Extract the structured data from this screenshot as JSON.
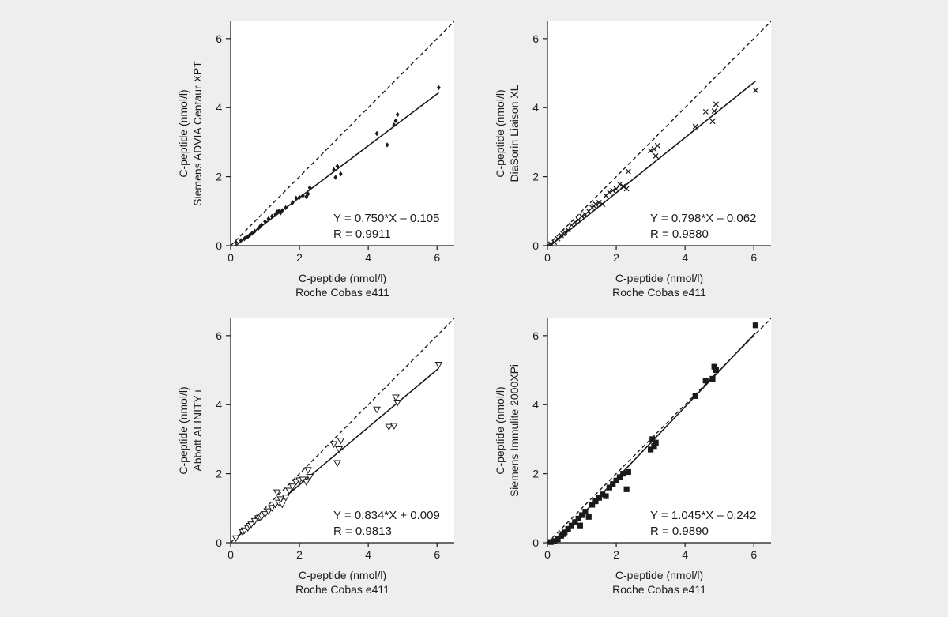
{
  "chart_data": [
    {
      "type": "scatter",
      "xlabel": [
        "C-peptide (nmol/l)",
        "Roche Cobas e411"
      ],
      "ylabel": [
        "C-peptide (nmol/l)",
        "Siemens ADVIA Centaur XPT"
      ],
      "xlim": [
        0,
        6.5
      ],
      "ylim": [
        0,
        6.5
      ],
      "xticks": [
        0,
        2,
        4,
        6
      ],
      "yticks": [
        0,
        2,
        4,
        6
      ],
      "marker": "diamond",
      "identity_line": true,
      "fit": {
        "slope": 0.75,
        "intercept": -0.105,
        "x_range": [
          0.14,
          6.05
        ]
      },
      "annotations": [
        "Y = 0.750*X – 0.105",
        "R = 0.9911"
      ],
      "points": [
        [
          0.15,
          0.1
        ],
        [
          0.3,
          0.15
        ],
        [
          0.4,
          0.2
        ],
        [
          0.45,
          0.24
        ],
        [
          0.5,
          0.26
        ],
        [
          0.55,
          0.3
        ],
        [
          0.62,
          0.36
        ],
        [
          0.7,
          0.42
        ],
        [
          0.8,
          0.5
        ],
        [
          0.85,
          0.55
        ],
        [
          0.9,
          0.6
        ],
        [
          1.0,
          0.7
        ],
        [
          1.1,
          0.78
        ],
        [
          1.2,
          0.85
        ],
        [
          1.3,
          0.9
        ],
        [
          1.35,
          0.98
        ],
        [
          1.4,
          1.0
        ],
        [
          1.45,
          0.95
        ],
        [
          1.5,
          1.02
        ],
        [
          1.6,
          1.1
        ],
        [
          1.8,
          1.25
        ],
        [
          1.9,
          1.38
        ],
        [
          2.0,
          1.4
        ],
        [
          2.1,
          1.45
        ],
        [
          2.2,
          1.42
        ],
        [
          2.25,
          1.5
        ],
        [
          2.3,
          1.68
        ],
        [
          3.0,
          2.2
        ],
        [
          3.05,
          1.98
        ],
        [
          3.1,
          2.3
        ],
        [
          3.2,
          2.08
        ],
        [
          4.25,
          3.25
        ],
        [
          4.55,
          2.92
        ],
        [
          4.75,
          3.5
        ],
        [
          4.8,
          3.62
        ],
        [
          4.85,
          3.8
        ],
        [
          6.05,
          4.58
        ]
      ]
    },
    {
      "type": "scatter",
      "xlabel": [
        "C-peptide (nmol/l)",
        "Roche Cobas e411"
      ],
      "ylabel": [
        "C-peptide (nmol/l)",
        "DiaSorin Liaison XL"
      ],
      "xlim": [
        0,
        6.5
      ],
      "ylim": [
        0,
        6.5
      ],
      "xticks": [
        0,
        2,
        4,
        6
      ],
      "yticks": [
        0,
        2,
        4,
        6
      ],
      "marker": "cross",
      "identity_line": true,
      "fit": {
        "slope": 0.798,
        "intercept": -0.062,
        "x_range": [
          0.08,
          6.05
        ]
      },
      "annotations": [
        "Y = 0.798*X – 0.062",
        "R = 0.9880"
      ],
      "points": [
        [
          0.1,
          0.05
        ],
        [
          0.2,
          0.1
        ],
        [
          0.3,
          0.2
        ],
        [
          0.4,
          0.3
        ],
        [
          0.45,
          0.35
        ],
        [
          0.5,
          0.4
        ],
        [
          0.6,
          0.45
        ],
        [
          0.7,
          0.6
        ],
        [
          0.8,
          0.68
        ],
        [
          0.9,
          0.75
        ],
        [
          1.0,
          0.85
        ],
        [
          1.1,
          0.9
        ],
        [
          1.2,
          1.0
        ],
        [
          1.3,
          1.1
        ],
        [
          1.35,
          1.15
        ],
        [
          1.4,
          1.2
        ],
        [
          1.5,
          1.25
        ],
        [
          1.6,
          1.2
        ],
        [
          1.7,
          1.45
        ],
        [
          1.8,
          1.55
        ],
        [
          1.9,
          1.6
        ],
        [
          2.0,
          1.65
        ],
        [
          2.1,
          1.78
        ],
        [
          2.2,
          1.72
        ],
        [
          2.3,
          1.65
        ],
        [
          2.35,
          2.15
        ],
        [
          3.0,
          2.75
        ],
        [
          3.1,
          2.8
        ],
        [
          3.15,
          2.6
        ],
        [
          3.2,
          2.9
        ],
        [
          4.3,
          3.45
        ],
        [
          4.6,
          3.88
        ],
        [
          4.8,
          3.6
        ],
        [
          4.85,
          3.9
        ],
        [
          4.9,
          4.1
        ],
        [
          6.05,
          4.5
        ]
      ]
    },
    {
      "type": "scatter",
      "xlabel": [
        "C-peptide (nmol/l)",
        "Roche Cobas e411"
      ],
      "ylabel": [
        "C-peptide (nmol/l)",
        "Abbott ALINITY i"
      ],
      "xlim": [
        0,
        6.5
      ],
      "ylim": [
        0,
        6.5
      ],
      "xticks": [
        0,
        2,
        4,
        6
      ],
      "yticks": [
        0,
        2,
        4,
        6
      ],
      "marker": "triangle-down",
      "identity_line": true,
      "fit": {
        "slope": 0.834,
        "intercept": 0.009,
        "x_range": [
          0.14,
          6.05
        ]
      },
      "annotations": [
        "Y = 0.834*X + 0.009",
        "R = 0.9813"
      ],
      "points": [
        [
          0.15,
          0.12
        ],
        [
          0.35,
          0.3
        ],
        [
          0.4,
          0.35
        ],
        [
          0.5,
          0.42
        ],
        [
          0.55,
          0.48
        ],
        [
          0.6,
          0.52
        ],
        [
          0.7,
          0.62
        ],
        [
          0.8,
          0.7
        ],
        [
          0.85,
          0.72
        ],
        [
          0.9,
          0.75
        ],
        [
          1.0,
          0.82
        ],
        [
          1.1,
          0.9
        ],
        [
          1.2,
          1.0
        ],
        [
          1.3,
          1.1
        ],
        [
          1.35,
          1.45
        ],
        [
          1.4,
          1.15
        ],
        [
          1.45,
          1.25
        ],
        [
          1.5,
          1.1
        ],
        [
          1.6,
          1.3
        ],
        [
          1.7,
          1.5
        ],
        [
          1.8,
          1.62
        ],
        [
          1.9,
          1.75
        ],
        [
          2.0,
          1.8
        ],
        [
          2.1,
          1.82
        ],
        [
          2.2,
          1.75
        ],
        [
          2.25,
          2.1
        ],
        [
          2.3,
          1.9
        ],
        [
          3.0,
          2.85
        ],
        [
          3.1,
          2.3
        ],
        [
          3.15,
          2.7
        ],
        [
          3.2,
          2.95
        ],
        [
          4.25,
          3.85
        ],
        [
          4.6,
          3.35
        ],
        [
          4.75,
          3.38
        ],
        [
          4.8,
          4.2
        ],
        [
          4.85,
          4.05
        ],
        [
          6.05,
          5.15
        ]
      ]
    },
    {
      "type": "scatter",
      "xlabel": [
        "C-peptide (nmol/l)",
        "Roche Cobas e411"
      ],
      "ylabel": [
        "C-peptide (nmol/l)",
        "Siemens Immulite 2000XPi"
      ],
      "xlim": [
        0,
        6.5
      ],
      "ylim": [
        0,
        6.5
      ],
      "xticks": [
        0,
        2,
        4,
        6
      ],
      "yticks": [
        0,
        2,
        4,
        6
      ],
      "marker": "square",
      "identity_line": true,
      "fit": {
        "slope": 1.045,
        "intercept": -0.242,
        "x_range": [
          0.23,
          6.05
        ]
      },
      "annotations": [
        "Y = 1.045*X – 0.242",
        "R = 0.9890"
      ],
      "points": [
        [
          0.1,
          0.02
        ],
        [
          0.2,
          0.05
        ],
        [
          0.3,
          0.1
        ],
        [
          0.4,
          0.2
        ],
        [
          0.45,
          0.25
        ],
        [
          0.5,
          0.3
        ],
        [
          0.6,
          0.4
        ],
        [
          0.7,
          0.5
        ],
        [
          0.8,
          0.6
        ],
        [
          0.9,
          0.7
        ],
        [
          0.95,
          0.5
        ],
        [
          1.0,
          0.8
        ],
        [
          1.1,
          0.9
        ],
        [
          1.2,
          0.75
        ],
        [
          1.3,
          1.1
        ],
        [
          1.4,
          1.2
        ],
        [
          1.5,
          1.3
        ],
        [
          1.6,
          1.4
        ],
        [
          1.7,
          1.35
        ],
        [
          1.8,
          1.6
        ],
        [
          1.9,
          1.7
        ],
        [
          2.0,
          1.8
        ],
        [
          2.1,
          1.9
        ],
        [
          2.2,
          2.0
        ],
        [
          2.3,
          1.55
        ],
        [
          2.35,
          2.05
        ],
        [
          3.0,
          2.7
        ],
        [
          3.05,
          3.0
        ],
        [
          3.1,
          2.8
        ],
        [
          3.15,
          2.9
        ],
        [
          4.3,
          4.25
        ],
        [
          4.6,
          4.7
        ],
        [
          4.8,
          4.75
        ],
        [
          4.85,
          5.1
        ],
        [
          4.9,
          5.0
        ],
        [
          6.05,
          6.3
        ]
      ]
    }
  ]
}
